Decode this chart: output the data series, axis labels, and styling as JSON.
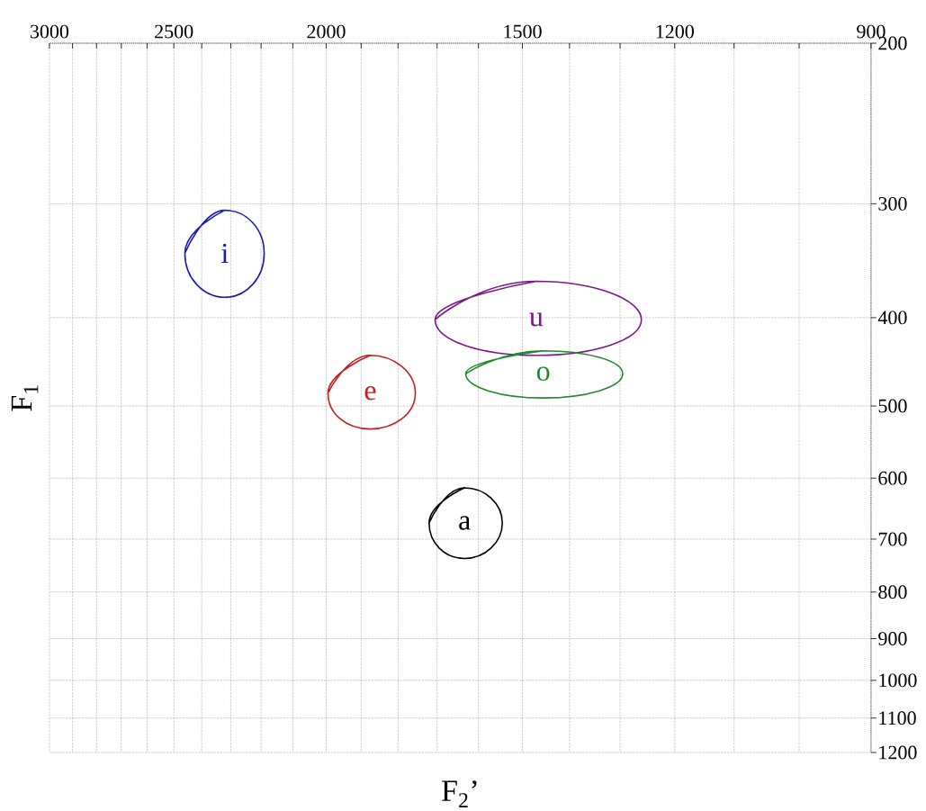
{
  "chart_data": {
    "type": "line",
    "xlabel": "F$_{2}$’",
    "ylabel": "F$_{1}$",
    "xlim": [
      3000,
      900
    ],
    "ylim": [
      1200,
      200
    ],
    "xticks": [
      3000,
      {
        "value": 2900,
        "label": null
      },
      {
        "value": 2800,
        "label": null
      },
      {
        "value": 2700,
        "label": null
      },
      {
        "value": 2600,
        "label": null
      },
      2500,
      {
        "value": 2400,
        "label": null
      },
      {
        "value": 2300,
        "label": null
      },
      {
        "value": 2200,
        "label": null
      },
      {
        "value": 2100,
        "label": null
      },
      2000,
      {
        "value": 1900,
        "label": null
      },
      {
        "value": 1800,
        "label": null
      },
      {
        "value": 1700,
        "label": null
      },
      {
        "value": 1600,
        "label": null
      },
      1500,
      {
        "value": 1400,
        "label": null
      },
      {
        "value": 1300,
        "label": null
      },
      1200,
      {
        "value": 1100,
        "label": null
      },
      {
        "value": 1000,
        "label": null
      },
      900
    ],
    "yticks": [
      200,
      300,
      400,
      500,
      600,
      700,
      800,
      900,
      1000,
      1100,
      1200
    ],
    "grid": true,
    "marker": "none",
    "log": "xy",
    "series": [
      {
        "name": "i",
        "color": "#1c1cb0",
        "x": [
          2460,
          2320,
          2190,
          2320
        ],
        "values": [
          340,
          305,
          340,
          380
        ]
      },
      {
        "name": "u",
        "color": "#7a1a86",
        "x": [
          1705,
          1470,
          1260,
          1470
        ],
        "values": [
          402,
          365,
          402,
          440
        ]
      },
      {
        "name": "o",
        "color": "#1f8a2a",
        "x": [
          1630,
          1455,
          1295,
          1455
        ],
        "values": [
          461,
          435,
          461,
          490
        ]
      },
      {
        "name": "e",
        "color": "#c42020",
        "x": [
          1995,
          1875,
          1755,
          1875
        ],
        "values": [
          484,
          440,
          484,
          530
        ]
      },
      {
        "name": "a",
        "color": "#000000",
        "x": [
          1720,
          1633,
          1545,
          1633
        ],
        "values": [
          672,
          615,
          672,
          735
        ]
      }
    ]
  }
}
